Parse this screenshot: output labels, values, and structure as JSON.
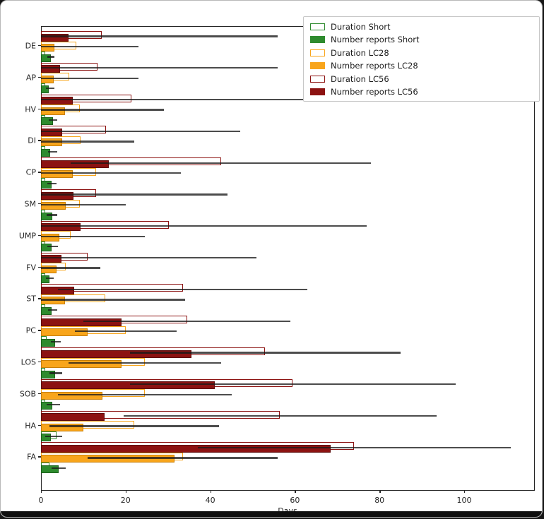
{
  "axis": {
    "xlabel": "Days",
    "xticks": [
      0,
      20,
      40,
      60,
      80,
      100
    ],
    "xlim": [
      0,
      116.5
    ]
  },
  "colors": {
    "short": "#2e8b2e",
    "short_edge": "#1c631c",
    "lc28": "#f8a51b",
    "lc28_edge": "#c97f06",
    "lc56": "#8c1211",
    "lc56_edge": "#5e0b0b",
    "whisker": "#3a3a3a"
  },
  "legend": {
    "entries": [
      {
        "label": "Duration Short",
        "series": "short",
        "filled": false
      },
      {
        "label": "Number reports Short",
        "series": "short",
        "filled": true
      },
      {
        "label": "Duration LC28",
        "series": "lc28",
        "filled": false
      },
      {
        "label": "Number reports LC28",
        "series": "lc28",
        "filled": true
      },
      {
        "label": "Duration LC56",
        "series": "lc56",
        "filled": false
      },
      {
        "label": "Number reports LC56",
        "series": "lc56",
        "filled": true
      }
    ]
  },
  "chart_data": {
    "type": "bar",
    "orientation": "horizontal",
    "xlabel": "Days",
    "xlim": [
      0,
      116.5
    ],
    "legend_position": "upper right",
    "grid": false,
    "series_names": [
      "Duration Short",
      "Number reports Short",
      "Duration LC28",
      "Number reports LC28",
      "Duration LC56",
      "Number reports LC56"
    ],
    "note": "duration = hollow outlined bar, reports = filled bar, whisker = error line [lo, hi], all in days",
    "categories": [
      "DE",
      "AP",
      "HV",
      "DI",
      "CP",
      "SM",
      "UMP",
      "FV",
      "ST",
      "PC",
      "LOS",
      "SOB",
      "HA",
      "FA"
    ],
    "groups": [
      {
        "category": "DE",
        "lc56": {
          "duration": 14.3,
          "reports": 6.5,
          "whisker": [
            0,
            56
          ]
        },
        "lc28": {
          "duration": 8.3,
          "reports": 3.1,
          "whisker": [
            0,
            23
          ]
        },
        "short": {
          "duration": 1.0,
          "reports": 2.3,
          "whisker": [
            1.5,
            3.2
          ]
        }
      },
      {
        "category": "AP",
        "lc56": {
          "duration": 13.4,
          "reports": 4.5,
          "whisker": [
            0,
            56
          ]
        },
        "lc28": {
          "duration": 6.6,
          "reports": 3.0,
          "whisker": [
            0,
            23
          ]
        },
        "short": {
          "duration": 1.0,
          "reports": 1.8,
          "whisker": [
            1.2,
            3.2
          ]
        }
      },
      {
        "category": "HV",
        "lc56": {
          "duration": 21.3,
          "reports": 7.5,
          "whisker": [
            0,
            62
          ]
        },
        "lc28": {
          "duration": 9.2,
          "reports": 5.7,
          "whisker": [
            0,
            29
          ]
        },
        "short": {
          "duration": 1.0,
          "reports": 2.9,
          "whisker": [
            1.9,
            3.9
          ]
        }
      },
      {
        "category": "DI",
        "lc56": {
          "duration": 15.4,
          "reports": 5.0,
          "whisker": [
            0,
            47
          ]
        },
        "lc28": {
          "duration": 9.3,
          "reports": 5.0,
          "whisker": [
            0,
            22
          ]
        },
        "short": {
          "duration": 1.0,
          "reports": 2.2,
          "whisker": [
            1.6,
            3.8
          ]
        }
      },
      {
        "category": "CP",
        "lc56": {
          "duration": 42.5,
          "reports": 16.0,
          "whisker": [
            7,
            78
          ]
        },
        "lc28": {
          "duration": 13.0,
          "reports": 7.5,
          "whisker": [
            0,
            33
          ]
        },
        "short": {
          "duration": 1.0,
          "reports": 2.5,
          "whisker": [
            1.5,
            3.6
          ]
        }
      },
      {
        "category": "SM",
        "lc56": {
          "duration": 13.0,
          "reports": 7.7,
          "whisker": [
            0,
            44
          ]
        },
        "lc28": {
          "duration": 9.1,
          "reports": 5.8,
          "whisker": [
            0,
            20
          ]
        },
        "short": {
          "duration": 1.0,
          "reports": 2.7,
          "whisker": [
            1.4,
            3.8
          ]
        }
      },
      {
        "category": "UMP",
        "lc56": {
          "duration": 30.3,
          "reports": 9.3,
          "whisker": [
            0,
            77
          ]
        },
        "lc28": {
          "duration": 7.0,
          "reports": 4.4,
          "whisker": [
            0,
            24.5
          ]
        },
        "short": {
          "duration": 1.0,
          "reports": 2.5,
          "whisker": [
            1.5,
            4.0
          ]
        }
      },
      {
        "category": "FV",
        "lc56": {
          "duration": 11.0,
          "reports": 4.9,
          "whisker": [
            0,
            51
          ]
        },
        "lc28": {
          "duration": 5.9,
          "reports": 3.7,
          "whisker": [
            0,
            14
          ]
        },
        "short": {
          "duration": 1.0,
          "reports": 2.0,
          "whisker": [
            1.2,
            3.0
          ]
        }
      },
      {
        "category": "ST",
        "lc56": {
          "duration": 33.6,
          "reports": 7.9,
          "whisker": [
            4,
            63
          ]
        },
        "lc28": {
          "duration": 15.2,
          "reports": 5.6,
          "whisker": [
            0,
            34
          ]
        },
        "short": {
          "duration": 1.0,
          "reports": 2.5,
          "whisker": [
            1.7,
            3.8
          ]
        }
      },
      {
        "category": "PC",
        "lc56": {
          "duration": 34.5,
          "reports": 19.0,
          "whisker": [
            10,
            59
          ]
        },
        "lc28": {
          "duration": 20.0,
          "reports": 11.0,
          "whisker": [
            8,
            32
          ]
        },
        "short": {
          "duration": 1.3,
          "reports": 3.3,
          "whisker": [
            2.4,
            4.7
          ]
        }
      },
      {
        "category": "LOS",
        "lc56": {
          "duration": 53.0,
          "reports": 35.5,
          "whisker": [
            21,
            85
          ]
        },
        "lc28": {
          "duration": 24.5,
          "reports": 19.0,
          "whisker": [
            6.5,
            42.5
          ]
        },
        "short": {
          "duration": 1.0,
          "reports": 3.3,
          "whisker": [
            2.0,
            5.0
          ]
        }
      },
      {
        "category": "SOB",
        "lc56": {
          "duration": 59.5,
          "reports": 41.0,
          "whisker": [
            21,
            98
          ]
        },
        "lc28": {
          "duration": 24.5,
          "reports": 14.5,
          "whisker": [
            4,
            45
          ]
        },
        "short": {
          "duration": 1.0,
          "reports": 2.7,
          "whisker": [
            1.3,
            4.5
          ]
        }
      },
      {
        "category": "HA",
        "lc56": {
          "duration": 56.5,
          "reports": 15.0,
          "whisker": [
            19.5,
            93.5
          ]
        },
        "lc28": {
          "duration": 22.0,
          "reports": 10.0,
          "whisker": [
            2,
            42
          ]
        },
        "short": {
          "duration": 3.6,
          "reports": 2.4,
          "whisker": [
            1.0,
            5.0
          ]
        }
      },
      {
        "category": "FA",
        "lc56": {
          "duration": 74.0,
          "reports": 68.5,
          "whisker": [
            37,
            111
          ]
        },
        "lc28": {
          "duration": 33.5,
          "reports": 31.5,
          "whisker": [
            11,
            56
          ]
        },
        "short": {
          "duration": 2.0,
          "reports": 4.2,
          "whisker": [
            2.5,
            5.8
          ]
        }
      }
    ]
  }
}
